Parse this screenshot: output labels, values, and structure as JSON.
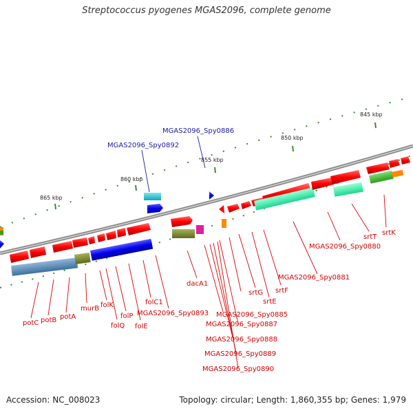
{
  "title": "Streptococcus pyogenes MGAS2096, complete genome",
  "footer": {
    "accession": "Accession: NC_008023",
    "topology": "Topology: circular; Length: 1,860,355 bp; Genes: 1,979"
  },
  "scale_labels": [
    "845 kbp",
    "850 kbp",
    "855 kbp",
    "860 kbp",
    "865 kbp"
  ],
  "genes_top": [
    "MGAS2096_Spy0886",
    "MGAS2096_Spy0892"
  ],
  "genes_bottom": [
    "potC",
    "potB",
    "potA",
    "murB",
    "folK",
    "folQ",
    "folP",
    "folE",
    "folC1",
    "MGAS2096_Spy0893",
    "dacA1",
    "srtG",
    "srtE",
    "srtF",
    "srtT",
    "srtK",
    "MGAS2096_Spy0880",
    "MGAS2096_Spy0881",
    "MGAS2096_Spy0885",
    "MGAS2096_Spy0887",
    "MGAS2096_Spy0888",
    "MGAS2096_Spy0889",
    "MGAS2096_Spy0890"
  ],
  "colors": {
    "forward_gene": "#ff0000",
    "reverse_gene": "#0000ee",
    "backbone": "#909090",
    "tick": "#118811",
    "label_red": "#d40000",
    "label_blue": "#1a1aa8"
  }
}
